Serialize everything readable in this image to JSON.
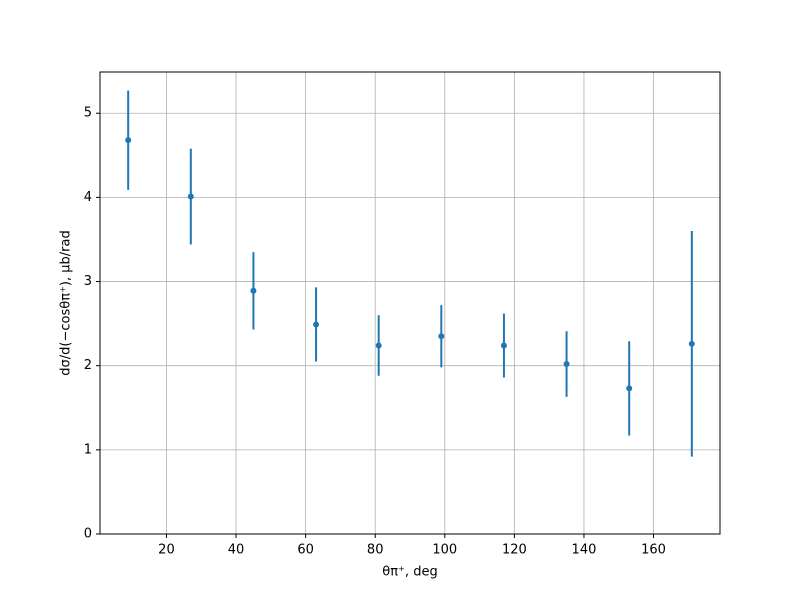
{
  "chart_data": {
    "type": "errorbar",
    "xlabel": "θπ⁺, deg",
    "ylabel": "dσ/d(−cosθπ⁺), μb/rad",
    "x": [
      9,
      27,
      45,
      63,
      81,
      99,
      117,
      135,
      153,
      171
    ],
    "series": [
      {
        "color": "#1f77b4",
        "values": [
          4.68,
          4.01,
          2.89,
          2.49,
          2.24,
          2.35,
          2.24,
          2.02,
          1.73,
          2.26
        ],
        "errors": [
          0.59,
          0.57,
          0.46,
          0.44,
          0.36,
          0.37,
          0.38,
          0.39,
          0.56,
          1.34
        ]
      }
    ],
    "xlim": [
      0.9,
      179.1
    ],
    "xticks": [
      20,
      40,
      60,
      80,
      100,
      120,
      140,
      160
    ],
    "ylim": [
      0,
      5.49
    ],
    "yticks": [
      0,
      1,
      2,
      3,
      4,
      5
    ],
    "grid": true
  }
}
